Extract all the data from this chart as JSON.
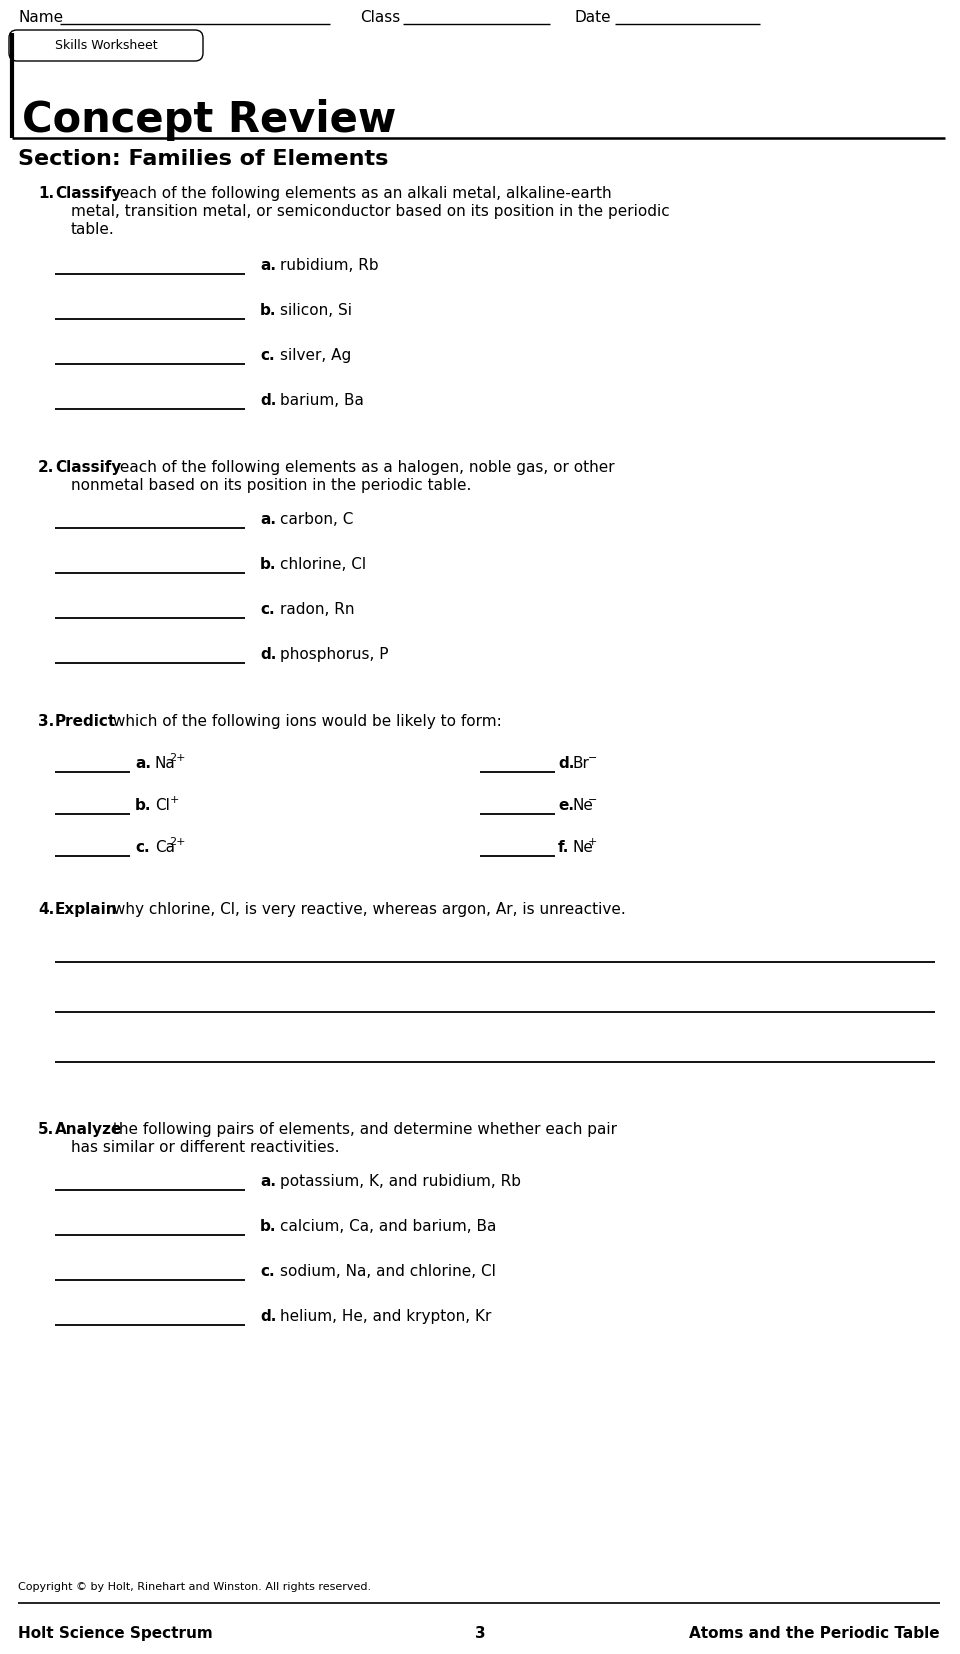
{
  "bg_color": "#ffffff",
  "header": {
    "name_label": "Name",
    "class_label": "Class",
    "date_label": "Date"
  },
  "skills_worksheet_text": "Skills Worksheet",
  "title": "Concept Review",
  "section_title": "Section: Families of Elements",
  "q1_bold": "Classify",
  "q1_rest": " each of the following elements as an alkali metal, alkaline-earth",
  "q1_line2": "metal, transition metal, or semiconductor based on its position in the periodic",
  "q1_line3": "table.",
  "q1_items": [
    {
      "letter": "a.",
      "text": "rubidium, Rb"
    },
    {
      "letter": "b.",
      "text": "silicon, Si"
    },
    {
      "letter": "c.",
      "text": "silver, Ag"
    },
    {
      "letter": "d.",
      "text": "barium, Ba"
    }
  ],
  "q2_bold": "Classify",
  "q2_rest": " each of the following elements as a halogen, noble gas, or other",
  "q2_line2": "nonmetal based on its position in the periodic table.",
  "q2_items": [
    {
      "letter": "a.",
      "text": "carbon, C"
    },
    {
      "letter": "b.",
      "text": "chlorine, Cl"
    },
    {
      "letter": "c.",
      "text": "radon, Rn"
    },
    {
      "letter": "d.",
      "text": "phosphorus, P"
    }
  ],
  "q3_bold": "Predict",
  "q3_rest": " which of the following ions would be likely to form:",
  "q3_left": [
    {
      "letter": "a.",
      "text": "Na",
      "sup": "2+"
    },
    {
      "letter": "b.",
      "text": "Cl",
      "sup": "+"
    },
    {
      "letter": "c.",
      "text": "Ca",
      "sup": "2+"
    }
  ],
  "q3_right": [
    {
      "letter": "d.",
      "text": "Br",
      "sup": "−"
    },
    {
      "letter": "e.",
      "text": "Ne",
      "sup": "−"
    },
    {
      "letter": "f.",
      "text": "Ne",
      "sup": "+"
    }
  ],
  "q4_bold": "Explain",
  "q4_rest": " why chlorine, Cl, is very reactive, whereas argon, Ar, is unreactive.",
  "q5_bold": "Analyze",
  "q5_rest": " the following pairs of elements, and determine whether each pair",
  "q5_line2": "has similar or different reactivities.",
  "q5_items": [
    {
      "letter": "a.",
      "text": "potassium, K, and rubidium, Rb"
    },
    {
      "letter": "b.",
      "text": "calcium, Ca, and barium, Ba"
    },
    {
      "letter": "c.",
      "text": "sodium, Na, and chlorine, Cl"
    },
    {
      "letter": "d.",
      "text": "helium, He, and krypton, Kr"
    }
  ],
  "footer_copy": "Copyright © by Holt, Rinehart and Winston. All rights reserved.",
  "footer_left": "Holt Science Spectrum",
  "footer_center": "3",
  "footer_right": "Atoms and the Periodic Table"
}
